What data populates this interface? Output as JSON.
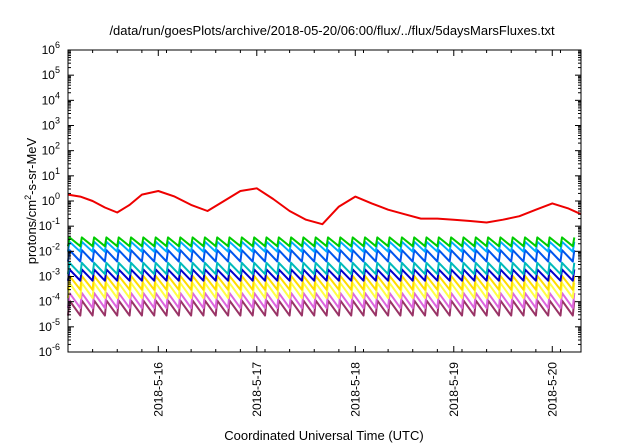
{
  "chart_data": {
    "type": "line",
    "title": "/data/run/goesPlots/archive/2018-05-20/06:00/flux/../flux/5daysMarsFluxes.txt",
    "xlabel": "Coordinated Universal Time (UTC)",
    "ylabel": "protons/cm²-s-sr-MeV",
    "ylabel_parts": {
      "pre": "protons/cm",
      "sup": "2",
      "post": "-s-sr-MeV"
    },
    "yscale": "log",
    "ylim": [
      1e-06,
      1000000.0
    ],
    "yticks": [
      {
        "value": 1e-06,
        "base": "10",
        "exp": "-6"
      },
      {
        "value": 1e-05,
        "base": "10",
        "exp": "-5"
      },
      {
        "value": 0.0001,
        "base": "10",
        "exp": "-4"
      },
      {
        "value": 0.001,
        "base": "10",
        "exp": "-3"
      },
      {
        "value": 0.01,
        "base": "10",
        "exp": "-2"
      },
      {
        "value": 0.1,
        "base": "10",
        "exp": "-1"
      },
      {
        "value": 1,
        "base": "10",
        "exp": "0"
      },
      {
        "value": 10,
        "base": "10",
        "exp": "1"
      },
      {
        "value": 100,
        "base": "10",
        "exp": "2"
      },
      {
        "value": 1000,
        "base": "10",
        "exp": "3"
      },
      {
        "value": 10000,
        "base": "10",
        "exp": "4"
      },
      {
        "value": 100000,
        "base": "10",
        "exp": "5"
      },
      {
        "value": 1000000,
        "base": "10",
        "exp": "6"
      }
    ],
    "xlim": [
      "2018-05-15T02:00",
      "2018-05-20T07:00"
    ],
    "xticks": [
      "2018-5-16",
      "2018-5-17",
      "2018-5-18",
      "2018-5-19",
      "2018-5-20"
    ],
    "grid": false,
    "legend": "none",
    "sawtooth_period_hours": 3,
    "series": [
      {
        "color": "#ee0000",
        "x": [
          "2018-05-15T02:00",
          "2018-05-15T05:00",
          "2018-05-15T08:00",
          "2018-05-15T11:00",
          "2018-05-15T14:00",
          "2018-05-15T17:00",
          "2018-05-15T20:00",
          "2018-05-16T00:00",
          "2018-05-16T04:00",
          "2018-05-16T08:00",
          "2018-05-16T12:00",
          "2018-05-16T16:00",
          "2018-05-16T20:00",
          "2018-05-17T00:00",
          "2018-05-17T04:00",
          "2018-05-17T08:00",
          "2018-05-17T12:00",
          "2018-05-17T16:00",
          "2018-05-17T20:00",
          "2018-05-18T00:00",
          "2018-05-18T04:00",
          "2018-05-18T08:00",
          "2018-05-18T12:00",
          "2018-05-18T16:00",
          "2018-05-18T20:00",
          "2018-05-19T00:00",
          "2018-05-19T04:00",
          "2018-05-19T08:00",
          "2018-05-19T12:00",
          "2018-05-19T16:00",
          "2018-05-19T20:00",
          "2018-05-20T00:00",
          "2018-05-20T04:00",
          "2018-05-20T07:00"
        ],
        "y": [
          1.8,
          1.5,
          1.0,
          0.55,
          0.35,
          0.7,
          1.8,
          2.5,
          1.5,
          0.7,
          0.4,
          1.0,
          2.5,
          3.2,
          1.2,
          0.4,
          0.18,
          0.12,
          0.6,
          1.5,
          0.8,
          0.45,
          0.3,
          0.2,
          0.2,
          0.18,
          0.16,
          0.14,
          0.18,
          0.25,
          0.45,
          0.8,
          0.5,
          0.3
        ]
      },
      {
        "color": "#00cc00",
        "baseline": 0.025,
        "amplitude_decades": 0.35
      },
      {
        "color": "#00aaff",
        "baseline": 0.016,
        "amplitude_decades": 0.4
      },
      {
        "color": "#0055ee",
        "baseline": 0.007,
        "amplitude_decades": 0.45
      },
      {
        "color": "#00bbbb",
        "baseline": 0.0022,
        "amplitude_decades": 0.45
      },
      {
        "color": "#0000cc",
        "baseline": 0.0012,
        "amplitude_decades": 0.45
      },
      {
        "color": "#ffdd00",
        "baseline": 0.0006,
        "amplitude_decades": 0.55
      },
      {
        "color": "#ffff44",
        "baseline": 0.0003,
        "amplitude_decades": 0.6
      },
      {
        "color": "#dd66dd",
        "baseline": 0.00012,
        "amplitude_decades": 0.6
      },
      {
        "color": "#993366",
        "baseline": 6e-05,
        "amplitude_decades": 0.6
      }
    ]
  }
}
